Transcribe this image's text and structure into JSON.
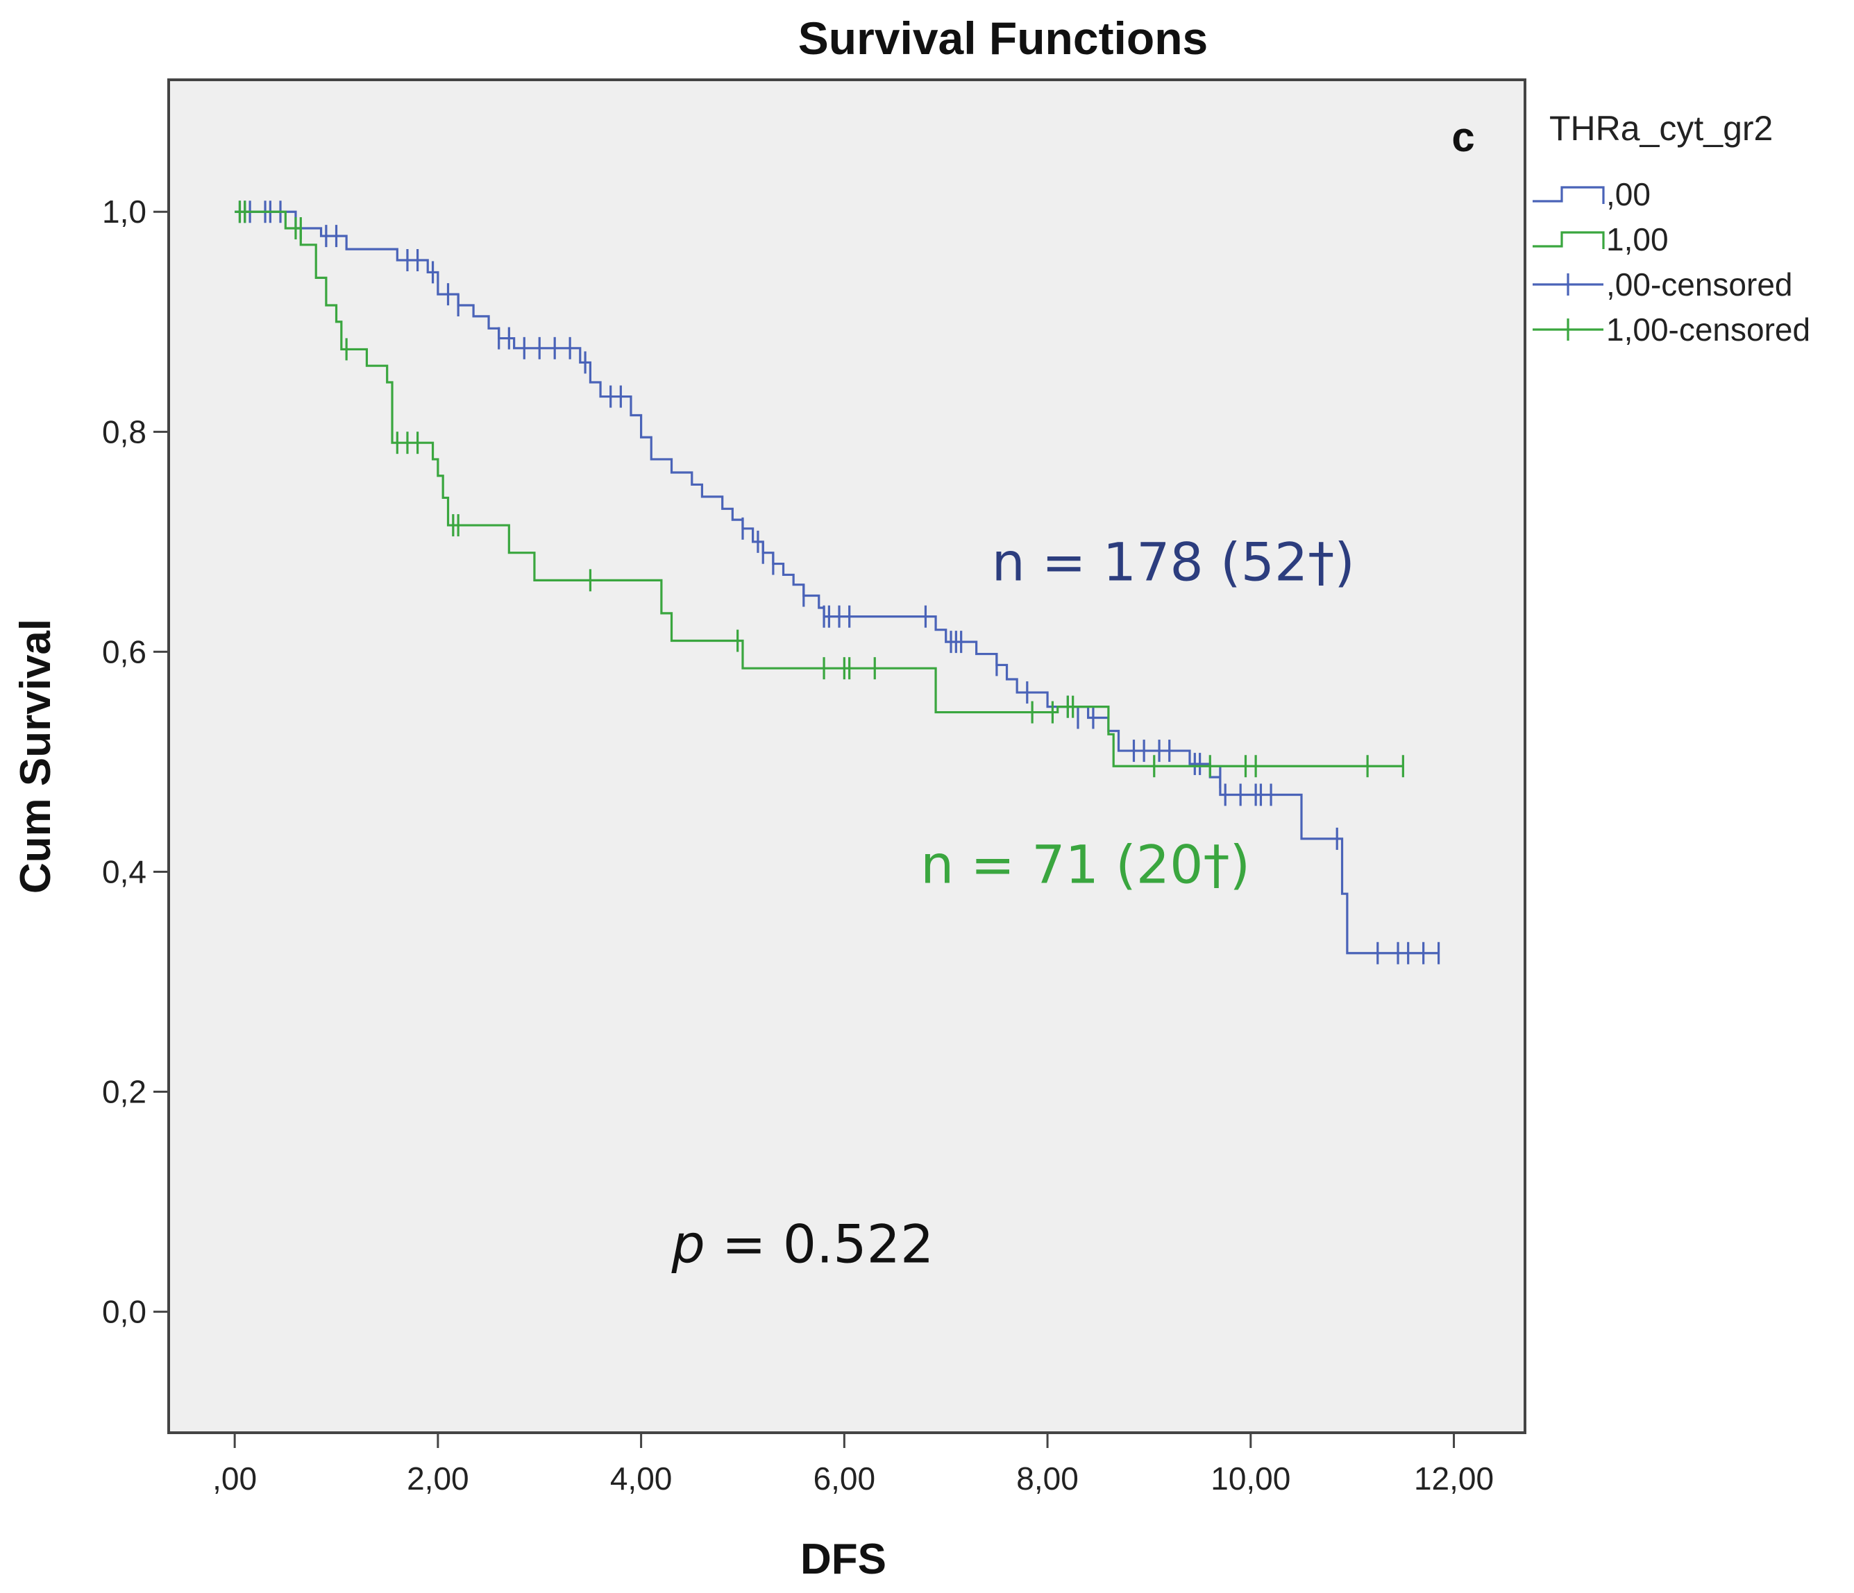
{
  "chart_data": {
    "type": "line",
    "title": "Survival Functions",
    "xlabel": "DFS",
    "ylabel": "Cum Survival",
    "xlim": [
      -0.65,
      12.7
    ],
    "ylim": [
      -0.11,
      1.12
    ],
    "xticks": [
      0,
      2,
      4,
      6,
      8,
      10,
      12
    ],
    "xtick_labels": [
      ",00",
      "2,00",
      "4,00",
      "6,00",
      "8,00",
      "10,00",
      "12,00"
    ],
    "yticks": [
      0,
      0.2,
      0.4,
      0.6,
      0.8,
      1.0
    ],
    "ytick_labels": [
      "0,0",
      "0,2",
      "0,4",
      "0,6",
      "0,8",
      "1,0"
    ],
    "panel_letter": "c",
    "legend": {
      "title": "THRa_cyt_gr2",
      "position": "right",
      "entries": [
        ",00",
        "1,00",
        ",00-censored",
        "1,00-censored"
      ]
    },
    "series": [
      {
        "name": ",00",
        "color": "#4a63b8",
        "steps": [
          [
            0,
            1.0
          ],
          [
            0.6,
            0.985
          ],
          [
            0.85,
            0.978
          ],
          [
            1.1,
            0.966
          ],
          [
            1.6,
            0.956
          ],
          [
            1.9,
            0.945
          ],
          [
            2.0,
            0.925
          ],
          [
            2.2,
            0.915
          ],
          [
            2.35,
            0.905
          ],
          [
            2.5,
            0.894
          ],
          [
            2.6,
            0.885
          ],
          [
            2.75,
            0.876
          ],
          [
            3.4,
            0.863
          ],
          [
            3.5,
            0.845
          ],
          [
            3.6,
            0.832
          ],
          [
            3.9,
            0.815
          ],
          [
            4.0,
            0.795
          ],
          [
            4.1,
            0.775
          ],
          [
            4.3,
            0.763
          ],
          [
            4.5,
            0.752
          ],
          [
            4.6,
            0.741
          ],
          [
            4.8,
            0.73
          ],
          [
            4.9,
            0.72
          ],
          [
            5.0,
            0.712
          ],
          [
            5.1,
            0.7
          ],
          [
            5.2,
            0.69
          ],
          [
            5.3,
            0.68
          ],
          [
            5.4,
            0.67
          ],
          [
            5.5,
            0.661
          ],
          [
            5.6,
            0.651
          ],
          [
            5.75,
            0.64
          ],
          [
            5.8,
            0.632
          ],
          [
            6.9,
            0.62
          ],
          [
            7.0,
            0.609
          ],
          [
            7.3,
            0.598
          ],
          [
            7.5,
            0.588
          ],
          [
            7.6,
            0.575
          ],
          [
            7.7,
            0.563
          ],
          [
            8.0,
            0.55
          ],
          [
            8.4,
            0.54
          ],
          [
            8.6,
            0.528
          ],
          [
            8.7,
            0.51
          ],
          [
            9.4,
            0.498
          ],
          [
            9.6,
            0.486
          ],
          [
            9.7,
            0.47
          ],
          [
            10.5,
            0.43
          ],
          [
            10.9,
            0.38
          ],
          [
            10.95,
            0.326
          ],
          [
            11.85,
            0.326
          ]
        ],
        "censored": [
          [
            0.05,
            1.0
          ],
          [
            0.1,
            1.0
          ],
          [
            0.15,
            1.0
          ],
          [
            0.3,
            1.0
          ],
          [
            0.35,
            1.0
          ],
          [
            0.45,
            1.0
          ],
          [
            0.9,
            0.978
          ],
          [
            1.0,
            0.978
          ],
          [
            1.7,
            0.956
          ],
          [
            1.8,
            0.956
          ],
          [
            1.95,
            0.945
          ],
          [
            2.1,
            0.925
          ],
          [
            2.2,
            0.915
          ],
          [
            2.6,
            0.885
          ],
          [
            2.7,
            0.885
          ],
          [
            2.85,
            0.876
          ],
          [
            3.0,
            0.876
          ],
          [
            3.15,
            0.876
          ],
          [
            3.3,
            0.876
          ],
          [
            3.45,
            0.863
          ],
          [
            3.7,
            0.832
          ],
          [
            3.8,
            0.832
          ],
          [
            5.0,
            0.712
          ],
          [
            5.15,
            0.7
          ],
          [
            5.2,
            0.69
          ],
          [
            5.3,
            0.68
          ],
          [
            5.6,
            0.651
          ],
          [
            5.8,
            0.632
          ],
          [
            5.85,
            0.632
          ],
          [
            5.95,
            0.632
          ],
          [
            6.05,
            0.632
          ],
          [
            6.8,
            0.632
          ],
          [
            7.05,
            0.609
          ],
          [
            7.1,
            0.609
          ],
          [
            7.15,
            0.609
          ],
          [
            7.5,
            0.588
          ],
          [
            7.8,
            0.563
          ],
          [
            8.2,
            0.55
          ],
          [
            8.3,
            0.54
          ],
          [
            8.45,
            0.54
          ],
          [
            8.85,
            0.51
          ],
          [
            8.95,
            0.51
          ],
          [
            9.1,
            0.51
          ],
          [
            9.2,
            0.51
          ],
          [
            9.45,
            0.498
          ],
          [
            9.5,
            0.498
          ],
          [
            9.7,
            0.486
          ],
          [
            9.75,
            0.47
          ],
          [
            9.9,
            0.47
          ],
          [
            10.05,
            0.47
          ],
          [
            10.1,
            0.47
          ],
          [
            10.2,
            0.47
          ],
          [
            10.85,
            0.43
          ],
          [
            11.25,
            0.326
          ],
          [
            11.45,
            0.326
          ],
          [
            11.55,
            0.326
          ],
          [
            11.7,
            0.326
          ],
          [
            11.85,
            0.326
          ]
        ]
      },
      {
        "name": "1,00",
        "color": "#3aa63f",
        "steps": [
          [
            0,
            1.0
          ],
          [
            0.5,
            0.985
          ],
          [
            0.65,
            0.97
          ],
          [
            0.8,
            0.94
          ],
          [
            0.9,
            0.915
          ],
          [
            1.0,
            0.9
          ],
          [
            1.05,
            0.875
          ],
          [
            1.3,
            0.86
          ],
          [
            1.5,
            0.845
          ],
          [
            1.55,
            0.79
          ],
          [
            1.95,
            0.775
          ],
          [
            2.0,
            0.76
          ],
          [
            2.05,
            0.74
          ],
          [
            2.1,
            0.715
          ],
          [
            2.7,
            0.69
          ],
          [
            2.95,
            0.665
          ],
          [
            4.2,
            0.635
          ],
          [
            4.3,
            0.61
          ],
          [
            5.0,
            0.585
          ],
          [
            6.9,
            0.545
          ],
          [
            8.1,
            0.55
          ],
          [
            8.6,
            0.525
          ],
          [
            8.65,
            0.496
          ],
          [
            11.5,
            0.496
          ]
        ],
        "censored": [
          [
            0.05,
            1.0
          ],
          [
            0.1,
            1.0
          ],
          [
            0.6,
            0.985
          ],
          [
            0.65,
            0.985
          ],
          [
            1.1,
            0.875
          ],
          [
            1.6,
            0.79
          ],
          [
            1.7,
            0.79
          ],
          [
            1.8,
            0.79
          ],
          [
            2.15,
            0.715
          ],
          [
            2.2,
            0.715
          ],
          [
            3.5,
            0.665
          ],
          [
            4.95,
            0.61
          ],
          [
            5.8,
            0.585
          ],
          [
            6.0,
            0.585
          ],
          [
            6.05,
            0.585
          ],
          [
            6.3,
            0.585
          ],
          [
            7.85,
            0.545
          ],
          [
            8.05,
            0.545
          ],
          [
            8.2,
            0.55
          ],
          [
            8.25,
            0.55
          ],
          [
            9.05,
            0.496
          ],
          [
            9.6,
            0.496
          ],
          [
            9.95,
            0.496
          ],
          [
            10.05,
            0.496
          ],
          [
            11.15,
            0.496
          ],
          [
            11.5,
            0.496
          ]
        ]
      }
    ],
    "annotations": [
      {
        "text": "n = 178 (52†)",
        "color": "#2c3d7e",
        "x": 7.45,
        "y": 0.665
      },
      {
        "text": "n = 71 (20†)",
        "color": "#3aa63f",
        "x": 6.75,
        "y": 0.39
      },
      {
        "text_italic": "p",
        "text": " = 0.522",
        "color": "#111111",
        "x": 4.3,
        "y": 0.045
      }
    ]
  }
}
